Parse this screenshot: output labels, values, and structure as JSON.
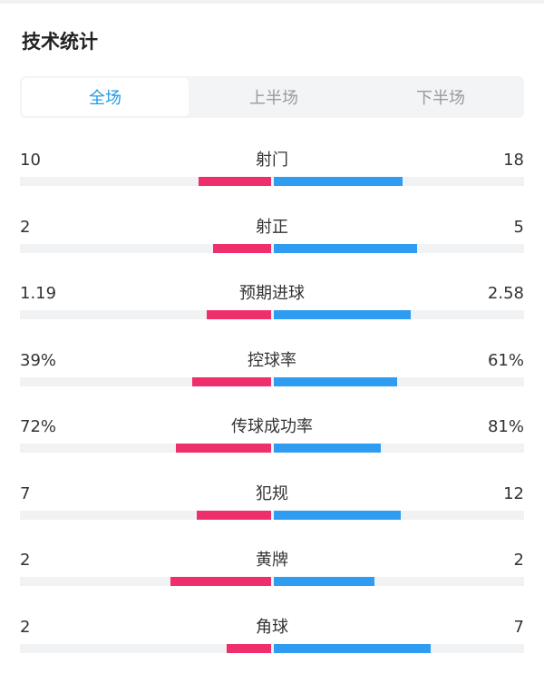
{
  "title": "技术统计",
  "tabs": [
    {
      "label": "全场",
      "active": true
    },
    {
      "label": "上半场",
      "active": false
    },
    {
      "label": "下半场",
      "active": false
    }
  ],
  "colors": {
    "home": "#ee2f6b",
    "away": "#2e9cf0",
    "accent": "#1e9be6"
  },
  "stats": [
    {
      "label": "射门",
      "home": "10",
      "away": "18",
      "home_share": 0.36,
      "away_share": 0.64
    },
    {
      "label": "射正",
      "home": "2",
      "away": "5",
      "home_share": 0.29,
      "away_share": 0.71
    },
    {
      "label": "预期进球",
      "home": "1.19",
      "away": "2.58",
      "home_share": 0.32,
      "away_share": 0.68
    },
    {
      "label": "控球率",
      "home": "39%",
      "away": "61%",
      "home_share": 0.39,
      "away_share": 0.61
    },
    {
      "label": "传球成功率",
      "home": "72%",
      "away": "81%",
      "home_share": 0.47,
      "away_share": 0.53
    },
    {
      "label": "犯规",
      "home": "7",
      "away": "12",
      "home_share": 0.37,
      "away_share": 0.63
    },
    {
      "label": "黄牌",
      "home": "2",
      "away": "2",
      "home_share": 0.5,
      "away_share": 0.5
    },
    {
      "label": "角球",
      "home": "2",
      "away": "7",
      "home_share": 0.22,
      "away_share": 0.78
    }
  ]
}
